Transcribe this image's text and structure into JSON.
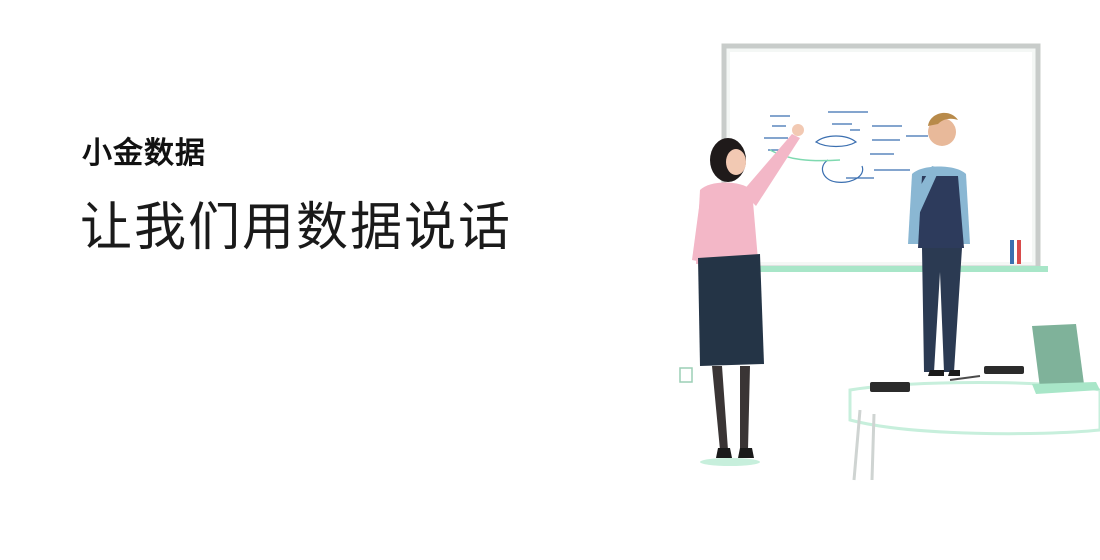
{
  "brand": {
    "name": "小金数据"
  },
  "hero": {
    "tagline": "让我们用数据说话"
  },
  "illustration": {
    "icon": "whiteboard-presentation-illustration",
    "accent": "#7fd9b0",
    "shirt": "#f3b7c7",
    "skirt": "#243446",
    "vest": "#2d3b5c"
  }
}
